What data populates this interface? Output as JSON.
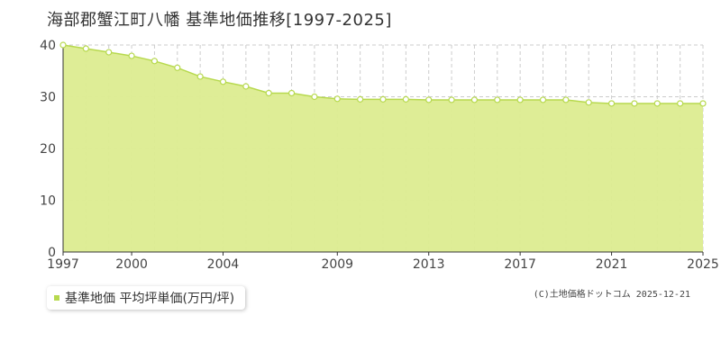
{
  "title": "海部郡蟹江町八幡 基準地価推移[1997-2025]",
  "legend_label": "基準地価 平均坪単価(万円/坪)",
  "copyright": "(C)土地価格ドットコム 2025-12-21",
  "colors": {
    "fill": "#dcec90",
    "line": "#b7d94e",
    "marker_stroke": "#b7d94e",
    "marker_fill": "#ffffff",
    "grid": "#cccccc",
    "text": "#333333"
  },
  "chart_data": {
    "type": "area",
    "x": [
      1997,
      1998,
      1999,
      2000,
      2001,
      2002,
      2003,
      2004,
      2005,
      2006,
      2007,
      2008,
      2009,
      2010,
      2011,
      2012,
      2013,
      2014,
      2015,
      2016,
      2017,
      2018,
      2019,
      2020,
      2021,
      2022,
      2023,
      2024,
      2025
    ],
    "series": [
      {
        "values": [
          40.0,
          39.3,
          38.6,
          37.9,
          36.9,
          35.6,
          33.9,
          32.9,
          32.0,
          30.7,
          30.7,
          30.0,
          29.6,
          29.5,
          29.5,
          29.5,
          29.4,
          29.4,
          29.4,
          29.4,
          29.4,
          29.4,
          29.4,
          28.9,
          28.7,
          28.7,
          28.7,
          28.7,
          28.7
        ]
      }
    ],
    "xlim": [
      1997,
      2025
    ],
    "ylim": [
      0,
      40
    ],
    "x_tick_labels": [
      "1997",
      "2000",
      "2004",
      "2009",
      "2013",
      "2017",
      "2021",
      "2025"
    ],
    "y_tick_labels": [
      "0",
      "10",
      "20",
      "30",
      "40"
    ],
    "grid": true,
    "legend_position": "bottom-left"
  }
}
